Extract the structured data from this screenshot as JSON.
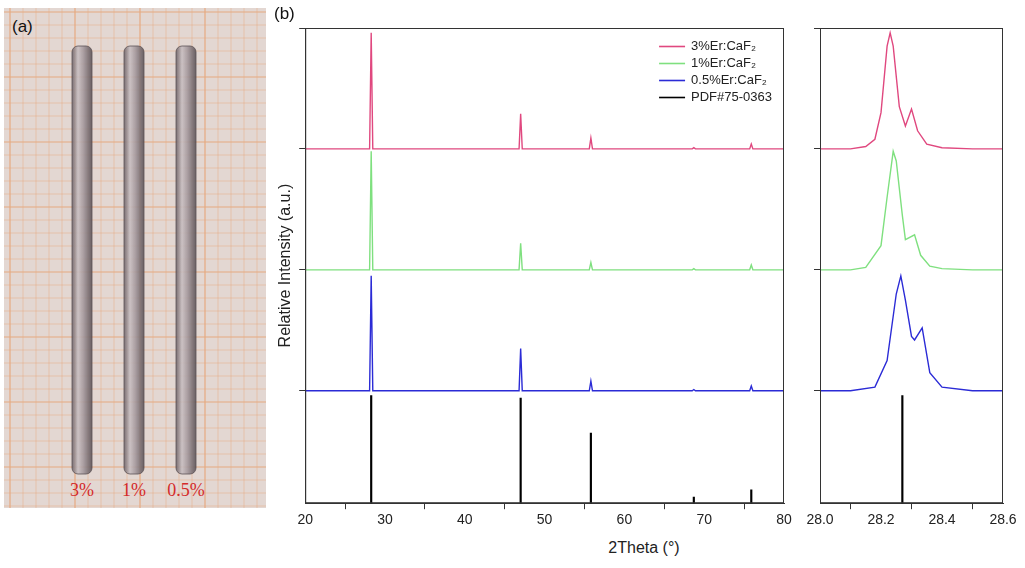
{
  "photo": {
    "title": "(a)",
    "labels": [
      "3%",
      "1%",
      "0.5%"
    ]
  },
  "chart_data": [
    {
      "type": "line",
      "title": "(b)",
      "x_label": "2Theta (°)",
      "y_label": "Relative Intensity (a.u.)",
      "xlim": [
        20,
        80
      ],
      "xticks": [
        20,
        30,
        40,
        50,
        60,
        70,
        80
      ],
      "ylim": [
        -0.93,
        3
      ],
      "yticks": [
        0,
        1,
        2,
        3
      ],
      "tick_labels": "x",
      "grid": false,
      "legend": "upper right",
      "series": [
        {
          "name": "3%Er:CaF₂",
          "color": "#e0487f",
          "x": [
            20,
            28.07,
            28.27,
            28.47,
            46.8,
            47.0,
            47.2,
            55.6,
            55.8,
            56.0,
            68.5,
            68.7,
            68.9,
            75.7,
            75.9,
            76.1,
            80
          ],
          "values": [
            2,
            2,
            2.96,
            2,
            2,
            2.29,
            2,
            2,
            2.09,
            2,
            2,
            2.01,
            2,
            2,
            2.04,
            2,
            2
          ]
        },
        {
          "name": "1%Er:CaF₂",
          "color": "#7fe07f",
          "x": [
            20,
            28.07,
            28.27,
            28.47,
            46.8,
            47.0,
            47.2,
            55.6,
            55.8,
            56.0,
            68.5,
            68.7,
            68.9,
            75.7,
            75.9,
            76.1,
            80
          ],
          "values": [
            1,
            1,
            1.98,
            1,
            1,
            1.22,
            1,
            1,
            1.06,
            1,
            1,
            1.01,
            1,
            1,
            1.04,
            1,
            1
          ]
        },
        {
          "name": "0.5%Er:CaF₂",
          "color": "#2b2bd6",
          "x": [
            20,
            28.07,
            28.27,
            28.47,
            46.8,
            47.0,
            47.2,
            55.6,
            55.8,
            56.0,
            68.5,
            68.7,
            68.9,
            75.7,
            75.9,
            76.1,
            80
          ],
          "values": [
            0,
            0,
            0.95,
            0,
            0,
            0.35,
            0,
            0,
            0.08,
            0,
            0,
            0.01,
            0,
            0,
            0.04,
            0,
            0
          ]
        },
        {
          "name": "PDF#75-0363",
          "color": "#000000",
          "type": "bar",
          "x": [
            28.27,
            47.0,
            55.8,
            68.7,
            75.9
          ],
          "values": [
            -0.04,
            -0.06,
            -0.35,
            -0.88,
            -0.82
          ]
        }
      ]
    },
    {
      "type": "line",
      "xlim": [
        28.0,
        28.6
      ],
      "xticks": [
        {
          "value": 28.0,
          "label": "28.0"
        },
        28.2,
        28.4,
        28.6
      ],
      "ylim": [
        -0.93,
        3
      ],
      "yticks": [
        0,
        1,
        2,
        3
      ],
      "tick_labels": "x",
      "grid": false,
      "series": [
        {
          "color": "#e0487f",
          "x": [
            28.0,
            28.1,
            28.15,
            28.18,
            28.2,
            28.22,
            28.23,
            28.24,
            28.26,
            28.28,
            28.3,
            28.32,
            28.35,
            28.4,
            28.5,
            28.6
          ],
          "values": [
            2.0,
            2.0,
            2.02,
            2.08,
            2.3,
            2.85,
            2.96,
            2.85,
            2.35,
            2.19,
            2.33,
            2.15,
            2.04,
            2.01,
            2.0,
            2.0
          ]
        },
        {
          "color": "#7fe07f",
          "x": [
            28.0,
            28.1,
            28.15,
            28.2,
            28.22,
            28.24,
            28.25,
            28.27,
            28.28,
            28.31,
            28.33,
            28.36,
            28.4,
            28.5,
            28.6
          ],
          "values": [
            1.0,
            1.0,
            1.02,
            1.2,
            1.6,
            1.98,
            1.9,
            1.45,
            1.25,
            1.29,
            1.12,
            1.03,
            1.01,
            1.0,
            1.0
          ]
        },
        {
          "color": "#2b2bd6",
          "x": [
            28.0,
            28.1,
            28.18,
            28.22,
            28.25,
            28.265,
            28.28,
            28.3,
            28.31,
            28.335,
            28.36,
            28.4,
            28.5,
            28.6
          ],
          "values": [
            0,
            0,
            0.03,
            0.25,
            0.8,
            0.95,
            0.75,
            0.45,
            0.42,
            0.52,
            0.15,
            0.03,
            0,
            0
          ]
        },
        {
          "color": "#000000",
          "type": "bar",
          "x": [
            28.27
          ],
          "values": [
            -0.04
          ]
        }
      ]
    }
  ]
}
